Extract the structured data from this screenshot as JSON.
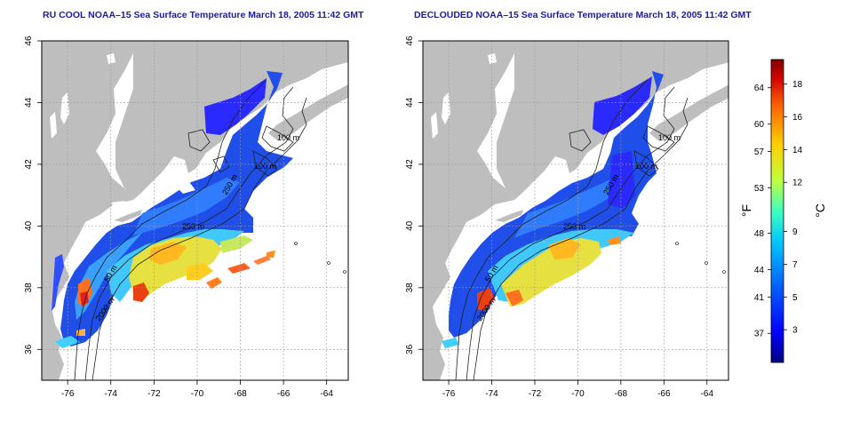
{
  "titles": {
    "left": "RU COOL NOAA–15 Sea Surface Temperature March 18, 2005 11:42 GMT",
    "right": "DECLOUDED NOAA–15 Sea Surface Temperature March 18, 2005 11:42 GMT"
  },
  "axes": {
    "lon_ticks": [
      "-76",
      "-74",
      "-72",
      "-70",
      "-68",
      "-66",
      "-64"
    ],
    "lat_ticks": [
      "36",
      "38",
      "40",
      "42",
      "44",
      "46"
    ],
    "lon_range": [
      -77.2,
      -63.0
    ],
    "lat_range": [
      35.0,
      46.0
    ]
  },
  "contour_labels": [
    "100 m",
    "100 m",
    "250 m",
    "250 m",
    "50 m",
    "2000 m"
  ],
  "colorbar": {
    "f_label": "°F",
    "c_label": "°C",
    "f_ticks": [
      "64",
      "60",
      "57",
      "53",
      "48",
      "44",
      "41",
      "37"
    ],
    "c_ticks": [
      "18",
      "16",
      "14",
      "12",
      "9",
      "7",
      "5",
      "3"
    ],
    "c_range": [
      1,
      19.5
    ],
    "colors": [
      "#00007f",
      "#0000ff",
      "#0060ff",
      "#00c8ff",
      "#40ffbf",
      "#bfff40",
      "#ffd000",
      "#ff6000",
      "#d00000",
      "#800000"
    ]
  },
  "colors": {
    "land": "#bebebe",
    "ocean": "#ffffff",
    "title": "#1a1aa8"
  }
}
